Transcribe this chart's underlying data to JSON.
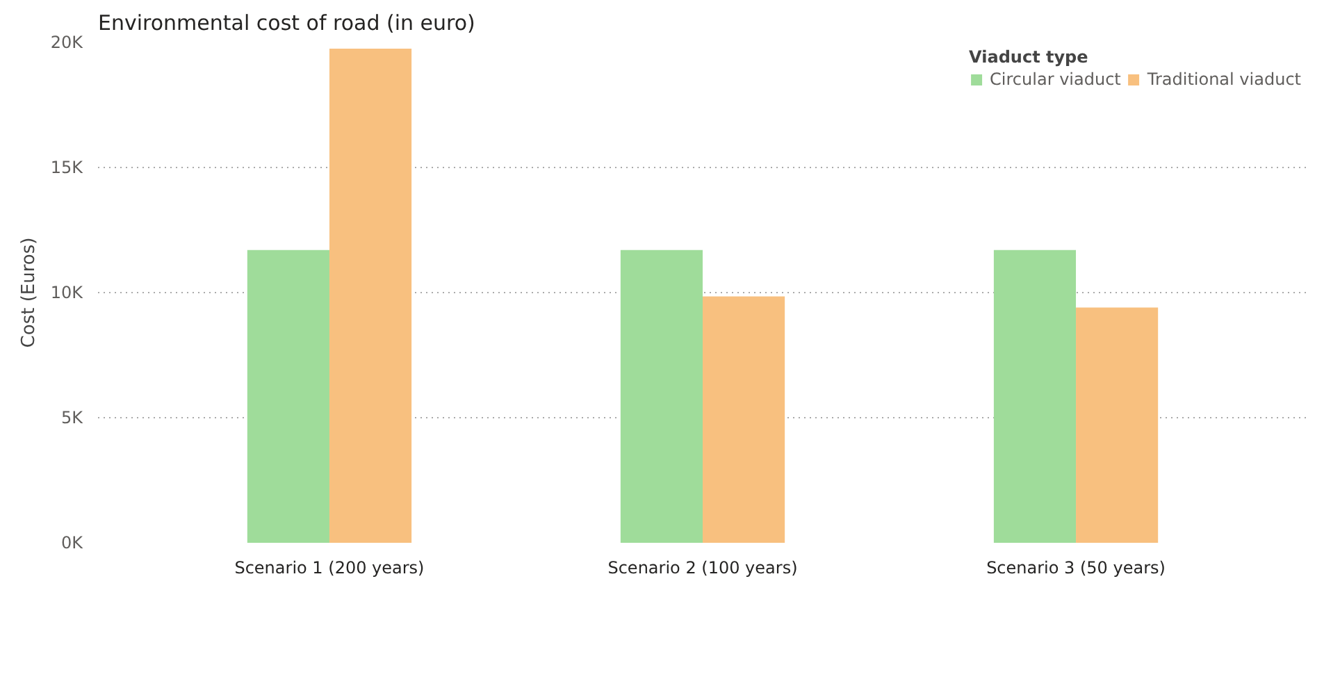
{
  "chart_data": {
    "type": "bar",
    "title": "Environmental cost of road (in euro)",
    "ylabel": "Cost (Euros)",
    "legend_title": "Viaduct type",
    "legend": "top right",
    "categories": [
      "Scenario 1 (200 years)",
      "Scenario 2 (100 years)",
      "Scenario 3 (50 years)"
    ],
    "series": [
      {
        "name": "Circular viaduct",
        "color": "#9fdc9a",
        "values": [
          11700,
          11700,
          11700
        ]
      },
      {
        "name": "Traditional viaduct",
        "color": "#f8c07f",
        "values": [
          19750,
          9850,
          9400
        ]
      }
    ],
    "ylim": [
      0,
      20000
    ],
    "yticks": [
      {
        "value": 0,
        "label": "0K"
      },
      {
        "value": 5000,
        "label": "5K"
      },
      {
        "value": 10000,
        "label": "10K"
      },
      {
        "value": 15000,
        "label": "15K"
      },
      {
        "value": 20000,
        "label": "20K"
      }
    ],
    "grid": "y"
  }
}
